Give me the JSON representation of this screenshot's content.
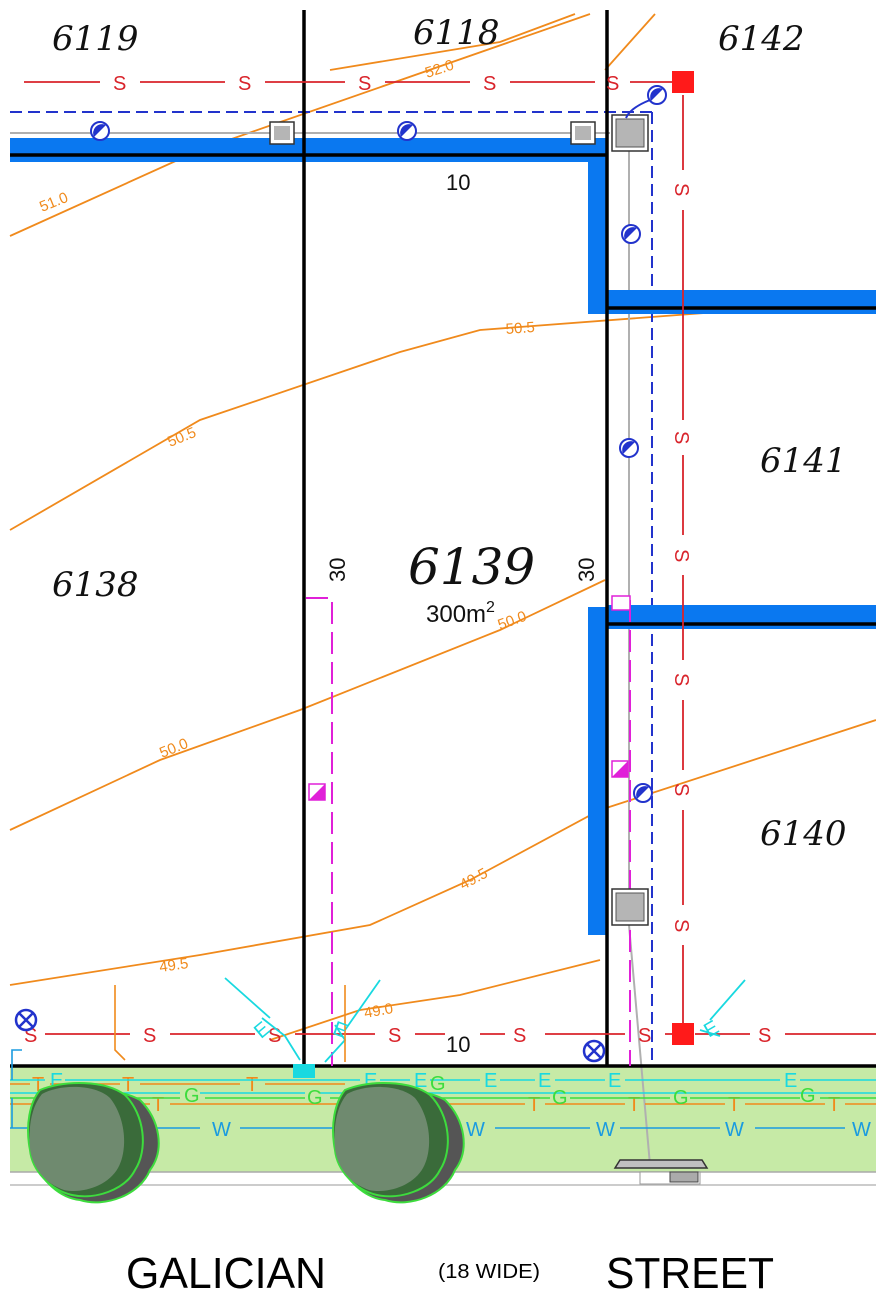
{
  "lots": {
    "l6119": "6119",
    "l6118": "6118",
    "l6142": "6142",
    "l6141": "6141",
    "l6138": "6138",
    "l6139": "6139",
    "l6140": "6140"
  },
  "subject_area": {
    "value": "300m",
    "sup": "2"
  },
  "dimensions": {
    "top": "10",
    "bottom": "10",
    "left": "30",
    "right": "30"
  },
  "contours": {
    "c52_0": "52.0",
    "c51_0": "51.0",
    "c50_5": "50.5",
    "c50_0": "50.0",
    "c49_5": "49.5",
    "c49_0": "49.0"
  },
  "service_codes": {
    "sewer": "S",
    "water": "W",
    "electric": "E",
    "gas": "G",
    "telecom": "T"
  },
  "street": {
    "name_left": "GALICIAN",
    "width_note": "(18 WIDE)",
    "name_right": "STREET"
  },
  "colors": {
    "sewer": "#d9242b",
    "water": "#1a9be0",
    "electric": "#19d9e0",
    "gas": "#3ddc3d",
    "telecom": "#f08a1c",
    "contour": "#f08a1c",
    "retaining_wall": "#0a78f0",
    "verge": "#c6eaa6",
    "drain": "#2233cc",
    "stormwater": "#e020d8",
    "sewer_connection": "#ff1a1a"
  }
}
